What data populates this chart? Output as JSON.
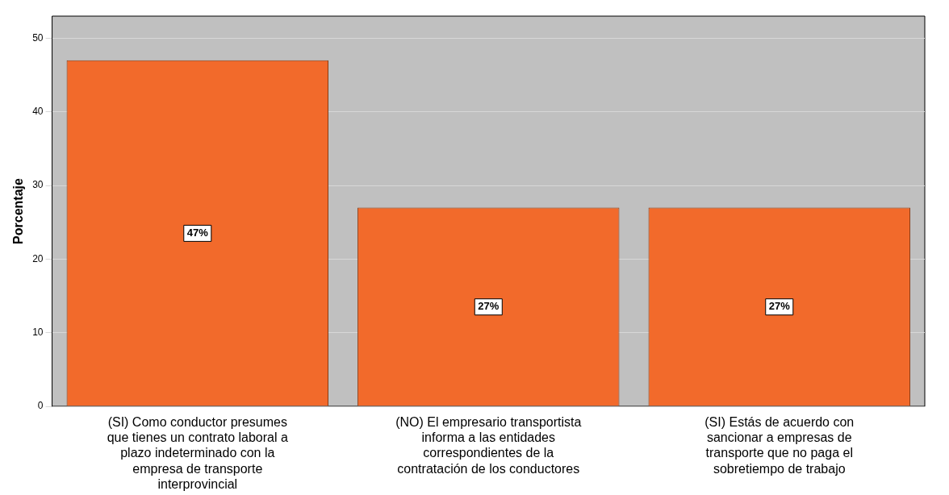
{
  "chart_data": {
    "type": "bar",
    "ylabel": "Porcentaje",
    "categories": [
      "(SI) Como conductor presumes que tienes un contrato laboral a plazo indeterminado con la empresa de transporte interprovincial",
      "(NO) El empresario transportista informa a las entidades correspondientes de la contratación de los conductores",
      "(SI) Estás de acuerdo con sancionar a empresas de transporte que no paga el sobretiempo de trabajo"
    ],
    "values": [
      47,
      27,
      27
    ],
    "value_labels": [
      "47%",
      "27%",
      "27%"
    ],
    "color": "#f26a2b",
    "ylim": [
      0,
      53
    ],
    "yticks": [
      0,
      10,
      20,
      30,
      40,
      50
    ],
    "grid": "y",
    "legend": false
  }
}
